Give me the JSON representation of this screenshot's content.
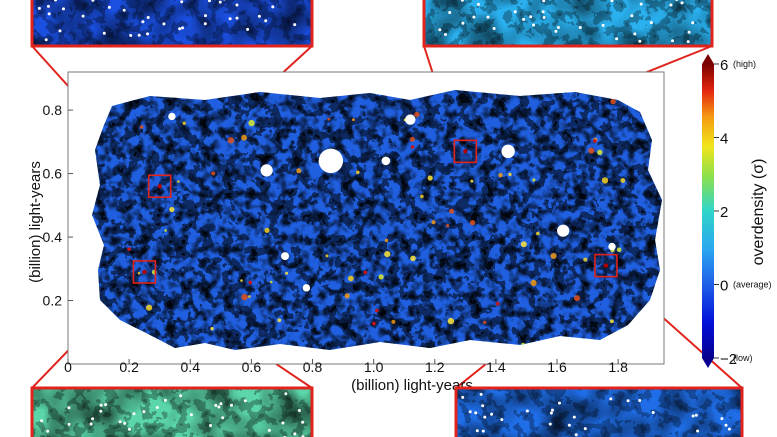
{
  "chart_data": {
    "type": "heatmap",
    "title": "",
    "xlabel": "(billion) light-years",
    "ylabel": "(billion) light-years",
    "xlim": [
      0,
      1.95
    ],
    "ylim": [
      0,
      0.92
    ],
    "x_ticks": [
      "0",
      "0.2",
      "0.4",
      "0.6",
      "0.8",
      "1.0",
      "1.2",
      "1.4",
      "1.6",
      "1.8"
    ],
    "y_ticks": [
      "0.2",
      "0.4",
      "0.6",
      "0.8"
    ],
    "x_tick_values": [
      0,
      0.2,
      0.4,
      0.6,
      0.8,
      1.0,
      1.2,
      1.4,
      1.6,
      1.8
    ],
    "y_tick_values": [
      0.2,
      0.4,
      0.6,
      0.8
    ],
    "colorbar": {
      "label": "overdensity (σ)",
      "range": [
        -2,
        6
      ],
      "ticks": [
        {
          "value": 6,
          "label": "6",
          "note": "(high)"
        },
        {
          "value": 4,
          "label": "4",
          "note": ""
        },
        {
          "value": 2,
          "label": "2",
          "note": ""
        },
        {
          "value": 0,
          "label": "0",
          "note": "(average)"
        },
        {
          "value": -2,
          "label": "−2",
          "note": "(low)"
        }
      ]
    },
    "highlighted_regions": [
      {
        "name": "top-left",
        "x": 0.3,
        "y": 0.56,
        "inset": "top-left"
      },
      {
        "name": "top-right",
        "x": 1.3,
        "y": 0.67,
        "inset": "top-right"
      },
      {
        "name": "bottom-left",
        "x": 0.25,
        "y": 0.29,
        "inset": "bottom-left"
      },
      {
        "name": "bottom-right",
        "x": 1.76,
        "y": 0.31,
        "inset": "bottom-right"
      }
    ],
    "masked_holes": [
      {
        "x": 0.86,
        "y": 0.64,
        "r": 0.04
      },
      {
        "x": 0.65,
        "y": 0.61,
        "r": 0.02
      },
      {
        "x": 1.12,
        "y": 0.77,
        "r": 0.017
      },
      {
        "x": 1.04,
        "y": 0.64,
        "r": 0.014
      },
      {
        "x": 1.44,
        "y": 0.67,
        "r": 0.022
      },
      {
        "x": 1.62,
        "y": 0.42,
        "r": 0.02
      },
      {
        "x": 0.71,
        "y": 0.34,
        "r": 0.013
      },
      {
        "x": 0.34,
        "y": 0.78,
        "r": 0.012
      },
      {
        "x": 1.78,
        "y": 0.37,
        "r": 0.012
      },
      {
        "x": 0.78,
        "y": 0.24,
        "r": 0.012
      }
    ],
    "colors": {
      "low": "#08008f",
      "average": "#1f6ee8",
      "high": "#7b0000",
      "frame": "#e0231c"
    }
  }
}
